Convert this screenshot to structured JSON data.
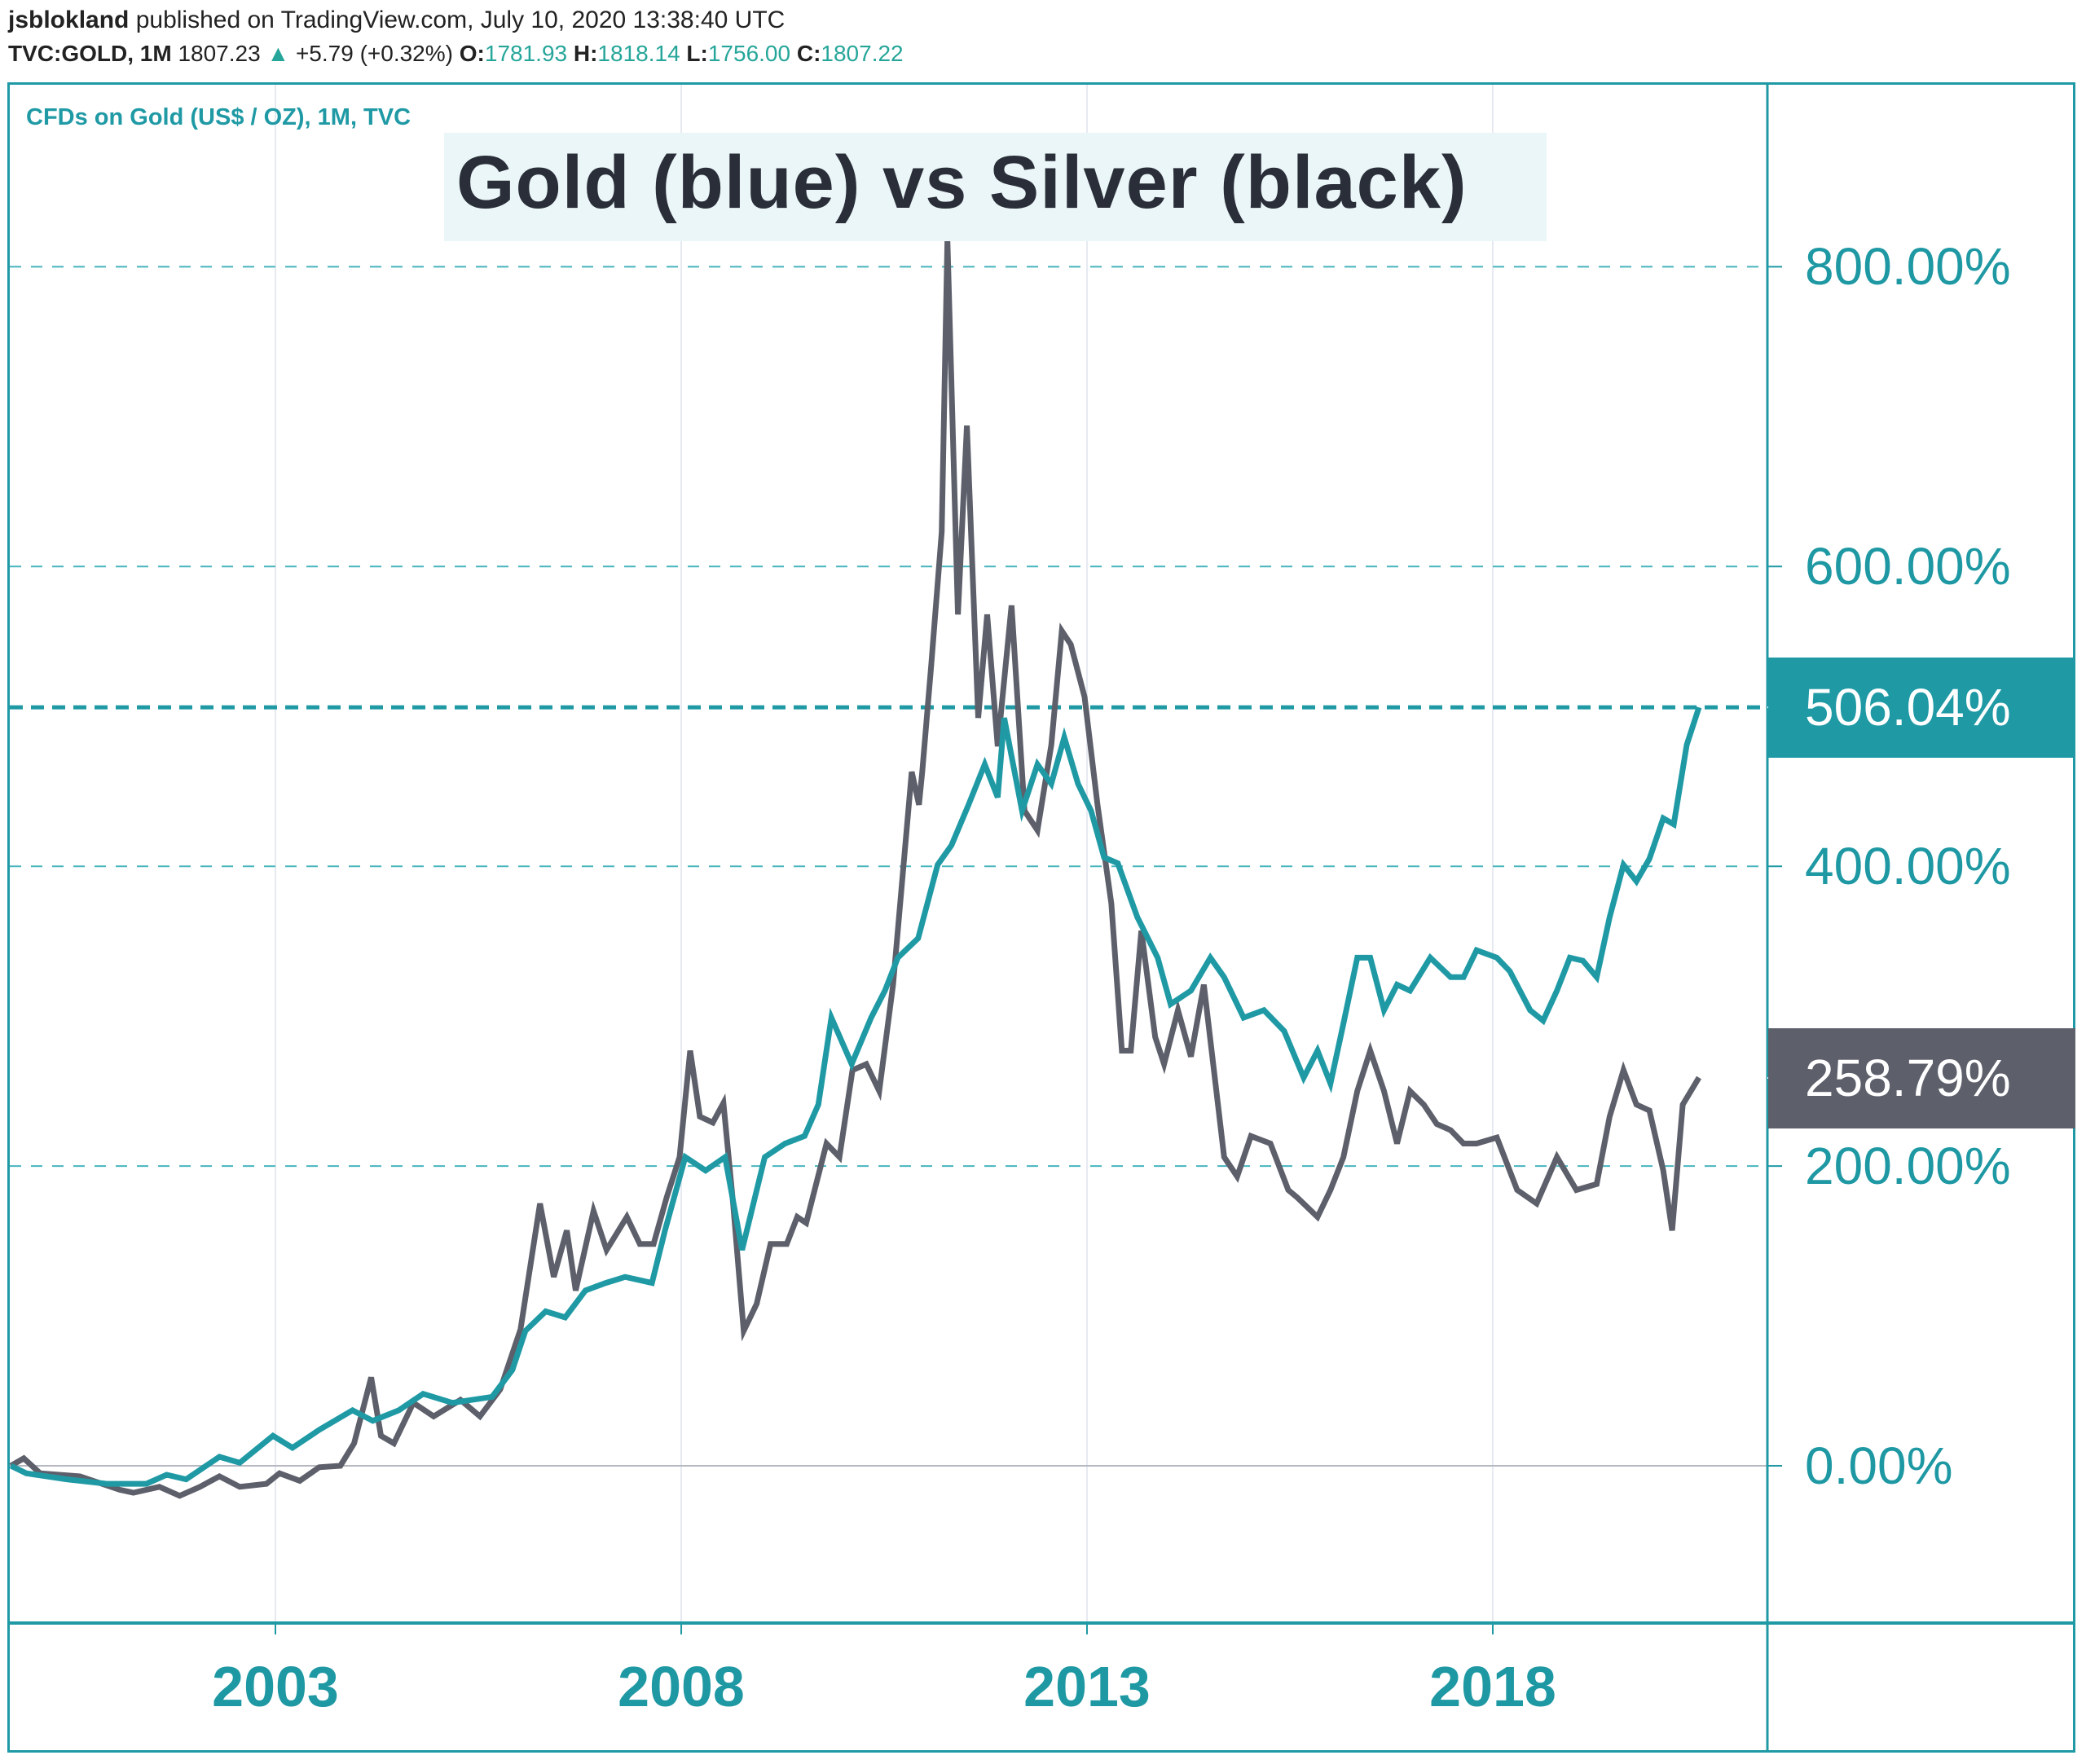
{
  "header": {
    "author": "jsblokland",
    "published_text": "published on TradingView.com, July 10, 2020 13:38:40 UTC",
    "symbol": "TVC:GOLD, 1M",
    "last": "1807.23",
    "change_icon": "triangle-up-icon",
    "change": "+5.79 (+0.32%)",
    "ohlc": [
      {
        "label": "O:",
        "value": "1781.93"
      },
      {
        "label": "H:",
        "value": "1818.14"
      },
      {
        "label": "L:",
        "value": "1756.00"
      },
      {
        "label": "C:",
        "value": "1807.22"
      }
    ]
  },
  "colors": {
    "gold": "#1f9aa5",
    "silver": "#5d606b",
    "axis_text": "#1e98a3",
    "frame": "#1f9aa5"
  },
  "chart_data": {
    "type": "line",
    "title": "Gold (blue) vs Silver (black)",
    "subtitle": "CFDs on Gold (US$ / OZ), 1M, TVC",
    "xlabel": "",
    "ylabel": "",
    "x_ticks": [
      "2003",
      "2008",
      "2013",
      "2018"
    ],
    "x_tick_values": [
      2003,
      2008,
      2013,
      2018
    ],
    "xlim": [
      1999.7,
      2021.5
    ],
    "y_ticks": [
      "0.00%",
      "200.00%",
      "400.00%",
      "600.00%",
      "800.00%"
    ],
    "y_tick_values": [
      0,
      200,
      400,
      600,
      800
    ],
    "ylim": [
      -105,
      900
    ],
    "grid": true,
    "last_values": [
      {
        "series": "Gold",
        "label": "506.04%",
        "value": 506.04
      },
      {
        "series": "Silver",
        "label": "258.79%",
        "value": 258.79
      }
    ],
    "series": [
      {
        "name": "Gold",
        "color": "#1f9aa5",
        "points": [
          [
            1999.74,
            0
          ],
          [
            1999.93,
            -5
          ],
          [
            2000.43,
            -9
          ],
          [
            2000.92,
            -12
          ],
          [
            2001.41,
            -12
          ],
          [
            2001.66,
            -6
          ],
          [
            2001.9,
            -9
          ],
          [
            2002.31,
            6
          ],
          [
            2002.56,
            2
          ],
          [
            2002.97,
            20
          ],
          [
            2003.21,
            12
          ],
          [
            2003.54,
            24
          ],
          [
            2003.95,
            37
          ],
          [
            2004.2,
            30
          ],
          [
            2004.52,
            37
          ],
          [
            2004.82,
            48
          ],
          [
            2005.18,
            42
          ],
          [
            2005.67,
            46
          ],
          [
            2005.92,
            64
          ],
          [
            2006.08,
            90
          ],
          [
            2006.33,
            103
          ],
          [
            2006.57,
            99
          ],
          [
            2006.82,
            117
          ],
          [
            2007.07,
            122
          ],
          [
            2007.31,
            126
          ],
          [
            2007.64,
            122
          ],
          [
            2007.8,
            157
          ],
          [
            2008.05,
            206
          ],
          [
            2008.3,
            197
          ],
          [
            2008.54,
            206
          ],
          [
            2008.75,
            144
          ],
          [
            2009.03,
            206
          ],
          [
            2009.28,
            215
          ],
          [
            2009.52,
            220
          ],
          [
            2009.69,
            241
          ],
          [
            2009.85,
            299
          ],
          [
            2010.1,
            268
          ],
          [
            2010.34,
            299
          ],
          [
            2010.51,
            317
          ],
          [
            2010.67,
            339
          ],
          [
            2010.92,
            352
          ],
          [
            2011.16,
            401
          ],
          [
            2011.33,
            414
          ],
          [
            2011.54,
            441
          ],
          [
            2011.74,
            468
          ],
          [
            2011.9,
            446
          ],
          [
            2011.98,
            499
          ],
          [
            2012.2,
            437
          ],
          [
            2012.39,
            468
          ],
          [
            2012.56,
            455
          ],
          [
            2012.72,
            486
          ],
          [
            2012.89,
            455
          ],
          [
            2013.05,
            437
          ],
          [
            2013.21,
            406
          ],
          [
            2013.38,
            402
          ],
          [
            2013.62,
            366
          ],
          [
            2013.87,
            339
          ],
          [
            2014.03,
            308
          ],
          [
            2014.28,
            317
          ],
          [
            2014.52,
            339
          ],
          [
            2014.69,
            326
          ],
          [
            2014.93,
            299
          ],
          [
            2015.18,
            304
          ],
          [
            2015.43,
            290
          ],
          [
            2015.67,
            259
          ],
          [
            2015.84,
            277
          ],
          [
            2016.0,
            255
          ],
          [
            2016.16,
            295
          ],
          [
            2016.33,
            339
          ],
          [
            2016.49,
            339
          ],
          [
            2016.66,
            304
          ],
          [
            2016.82,
            321
          ],
          [
            2016.98,
            317
          ],
          [
            2017.23,
            339
          ],
          [
            2017.48,
            326
          ],
          [
            2017.64,
            326
          ],
          [
            2017.8,
            344
          ],
          [
            2018.05,
            339
          ],
          [
            2018.21,
            330
          ],
          [
            2018.46,
            304
          ],
          [
            2018.62,
            297
          ],
          [
            2018.79,
            317
          ],
          [
            2018.95,
            339
          ],
          [
            2019.11,
            337
          ],
          [
            2019.28,
            326
          ],
          [
            2019.44,
            366
          ],
          [
            2019.61,
            401
          ],
          [
            2019.77,
            390
          ],
          [
            2019.93,
            405
          ],
          [
            2020.1,
            432
          ],
          [
            2020.23,
            428
          ],
          [
            2020.39,
            481
          ],
          [
            2020.54,
            506
          ]
        ]
      },
      {
        "name": "Silver",
        "color": "#5d606b",
        "points": [
          [
            1999.74,
            0
          ],
          [
            1999.9,
            5
          ],
          [
            2000.1,
            -5
          ],
          [
            2000.59,
            -7
          ],
          [
            2001.08,
            -16
          ],
          [
            2001.25,
            -18
          ],
          [
            2001.57,
            -14
          ],
          [
            2001.82,
            -20
          ],
          [
            2002.07,
            -14
          ],
          [
            2002.31,
            -7
          ],
          [
            2002.56,
            -14
          ],
          [
            2002.89,
            -12
          ],
          [
            2003.05,
            -5
          ],
          [
            2003.3,
            -10
          ],
          [
            2003.54,
            -1
          ],
          [
            2003.8,
            0
          ],
          [
            2003.97,
            15
          ],
          [
            2004.18,
            59
          ],
          [
            2004.3,
            20
          ],
          [
            2004.46,
            15
          ],
          [
            2004.7,
            42
          ],
          [
            2004.95,
            33
          ],
          [
            2005.28,
            44
          ],
          [
            2005.52,
            33
          ],
          [
            2005.77,
            51
          ],
          [
            2006.02,
            91
          ],
          [
            2006.26,
            175
          ],
          [
            2006.43,
            126
          ],
          [
            2006.59,
            157
          ],
          [
            2006.7,
            117
          ],
          [
            2006.92,
            170
          ],
          [
            2007.08,
            144
          ],
          [
            2007.33,
            166
          ],
          [
            2007.49,
            148
          ],
          [
            2007.66,
            148
          ],
          [
            2007.82,
            179
          ],
          [
            2007.98,
            206
          ],
          [
            2008.11,
            277
          ],
          [
            2008.23,
            233
          ],
          [
            2008.39,
            229
          ],
          [
            2008.52,
            242
          ],
          [
            2008.64,
            175
          ],
          [
            2008.77,
            90
          ],
          [
            2008.93,
            108
          ],
          [
            2009.1,
            148
          ],
          [
            2009.3,
            148
          ],
          [
            2009.43,
            166
          ],
          [
            2009.54,
            162
          ],
          [
            2009.79,
            215
          ],
          [
            2009.95,
            206
          ],
          [
            2010.11,
            264
          ],
          [
            2010.28,
            268
          ],
          [
            2010.44,
            250
          ],
          [
            2010.61,
            321
          ],
          [
            2010.84,
            463
          ],
          [
            2010.93,
            441
          ],
          [
            2010.97,
            463
          ],
          [
            2011.08,
            534
          ],
          [
            2011.21,
            623
          ],
          [
            2011.28,
            818
          ],
          [
            2011.41,
            568
          ],
          [
            2011.52,
            694
          ],
          [
            2011.66,
            499
          ],
          [
            2011.77,
            568
          ],
          [
            2011.9,
            480
          ],
          [
            2012.07,
            574
          ],
          [
            2012.23,
            437
          ],
          [
            2012.39,
            424
          ],
          [
            2012.56,
            481
          ],
          [
            2012.69,
            557
          ],
          [
            2012.8,
            548
          ],
          [
            2012.97,
            513
          ],
          [
            2013.13,
            441
          ],
          [
            2013.3,
            375
          ],
          [
            2013.43,
            277
          ],
          [
            2013.54,
            277
          ],
          [
            2013.67,
            357
          ],
          [
            2013.84,
            286
          ],
          [
            2013.95,
            268
          ],
          [
            2014.12,
            304
          ],
          [
            2014.28,
            273
          ],
          [
            2014.44,
            321
          ],
          [
            2014.69,
            206
          ],
          [
            2014.85,
            193
          ],
          [
            2015.02,
            220
          ],
          [
            2015.26,
            215
          ],
          [
            2015.48,
            184
          ],
          [
            2015.59,
            179
          ],
          [
            2015.84,
            166
          ],
          [
            2016.0,
            184
          ],
          [
            2016.16,
            206
          ],
          [
            2016.33,
            250
          ],
          [
            2016.49,
            277
          ],
          [
            2016.66,
            250
          ],
          [
            2016.82,
            215
          ],
          [
            2016.98,
            250
          ],
          [
            2017.15,
            241
          ],
          [
            2017.31,
            228
          ],
          [
            2017.48,
            224
          ],
          [
            2017.64,
            215
          ],
          [
            2017.8,
            215
          ],
          [
            2018.05,
            219
          ],
          [
            2018.3,
            184
          ],
          [
            2018.54,
            175
          ],
          [
            2018.79,
            206
          ],
          [
            2019.03,
            184
          ],
          [
            2019.28,
            188
          ],
          [
            2019.44,
            233
          ],
          [
            2019.61,
            264
          ],
          [
            2019.77,
            241
          ],
          [
            2019.93,
            237
          ],
          [
            2020.1,
            197
          ],
          [
            2020.21,
            157
          ],
          [
            2020.34,
            241
          ],
          [
            2020.54,
            259
          ]
        ]
      }
    ]
  }
}
